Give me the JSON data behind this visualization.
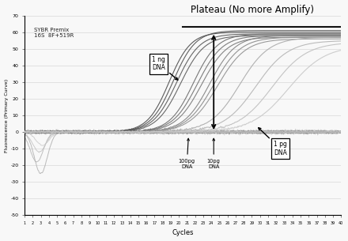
{
  "title": "Plateau (No more Amplify)",
  "xlabel": "Cycles",
  "ylabel": "Fluorescence (Primary Curve)",
  "xlim": [
    1,
    40
  ],
  "ylim": [
    -50,
    70
  ],
  "yticks": [
    -50,
    -40,
    -30,
    -20,
    -10,
    0,
    10,
    20,
    30,
    40,
    50,
    60,
    70
  ],
  "xticks": [
    1,
    2,
    3,
    4,
    5,
    6,
    7,
    8,
    9,
    10,
    11,
    12,
    13,
    14,
    15,
    16,
    17,
    18,
    19,
    20,
    21,
    22,
    23,
    24,
    25,
    26,
    27,
    28,
    29,
    30,
    31,
    32,
    33,
    34,
    35,
    36,
    37,
    38,
    39,
    40
  ],
  "label_text": "SYBR Premix\n16S  8F+519R",
  "plateau_y": 63,
  "plateau_x_start": 20.5,
  "background_color": "#f8f8f8",
  "grid_color": "#e0e0e0"
}
